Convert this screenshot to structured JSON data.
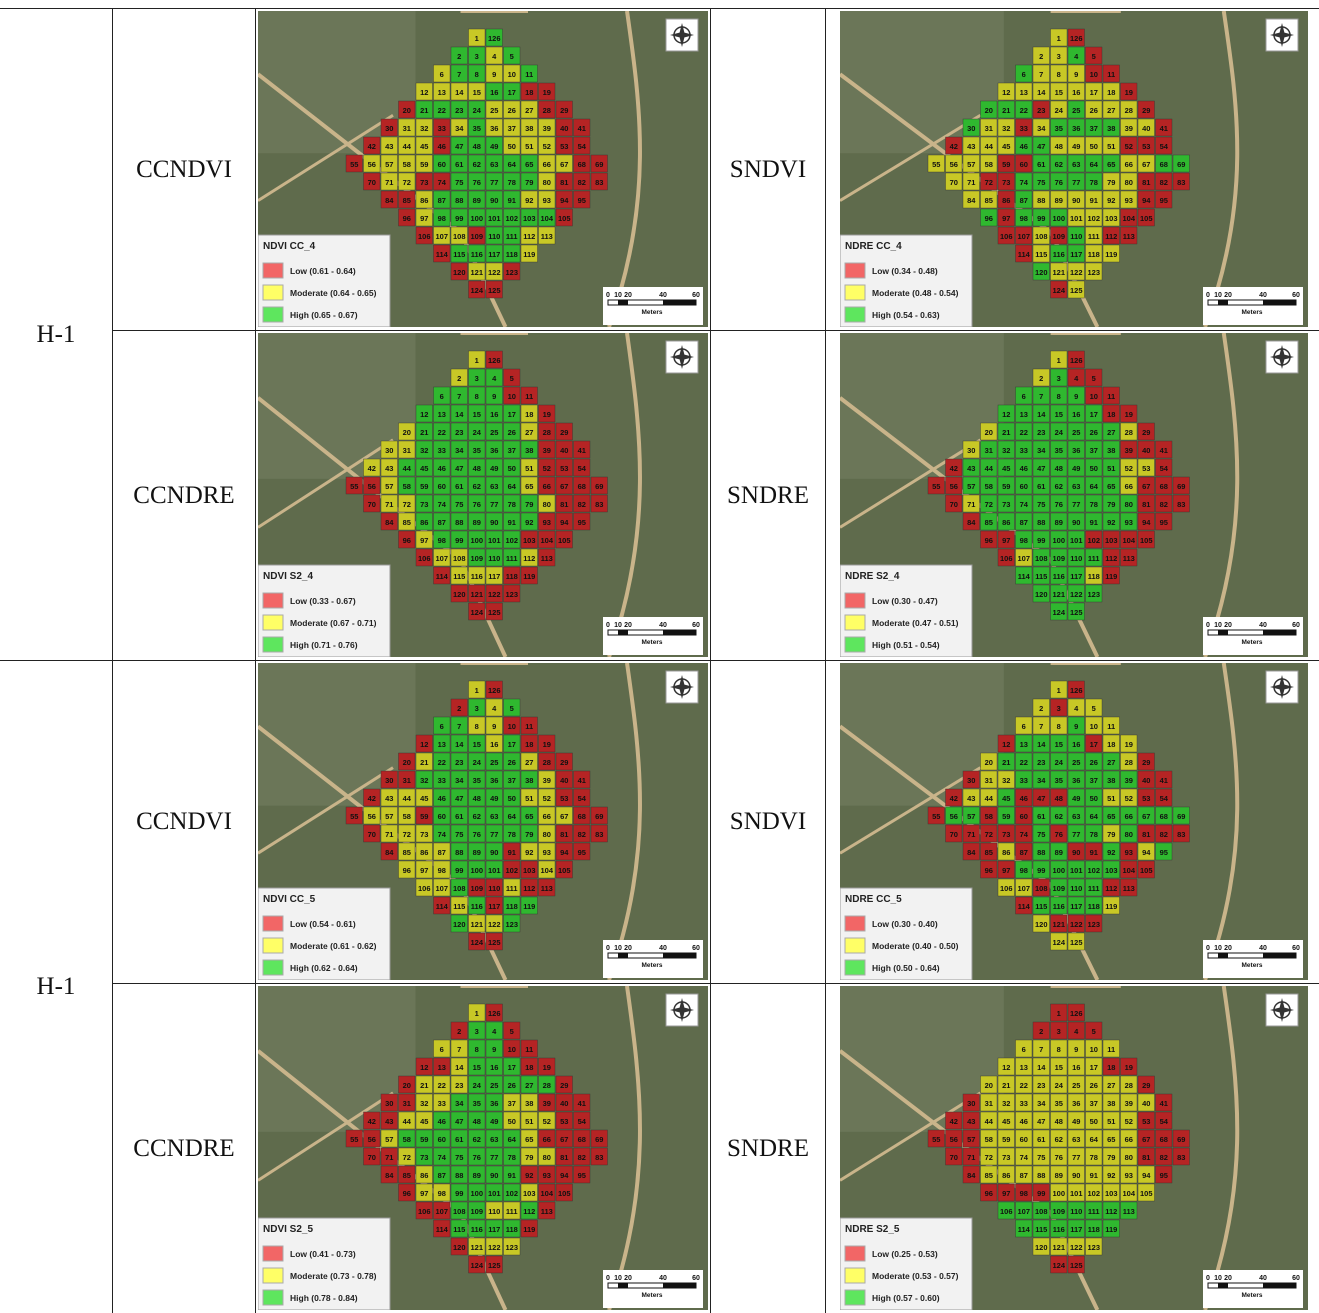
{
  "cell_colors": [
    "#b52424",
    "#c8c826",
    "#2fb82f"
  ],
  "cell_rows": [
    [
      1,
      126
    ],
    [
      2,
      3,
      4,
      5
    ],
    [
      6,
      7,
      8,
      9,
      10,
      11
    ],
    [
      12,
      13,
      14,
      15,
      16,
      17,
      18,
      19
    ],
    [
      20,
      21,
      22,
      23,
      24,
      25,
      26,
      27,
      28,
      29
    ],
    [
      30,
      31,
      32,
      33,
      34,
      35,
      36,
      37,
      38,
      39,
      40,
      41
    ],
    [
      42,
      43,
      44,
      45,
      46,
      47,
      48,
      49,
      50,
      51,
      52,
      53,
      54
    ],
    [
      55,
      56,
      57,
      58,
      59,
      60,
      61,
      62,
      63,
      64,
      65,
      66,
      67,
      68,
      69
    ],
    [
      70,
      71,
      72,
      73,
      74,
      75,
      76,
      77,
      78,
      79,
      80,
      81,
      82,
      83
    ],
    [
      84,
      85,
      86,
      87,
      88,
      89,
      90,
      91,
      92,
      93,
      94,
      95
    ],
    [
      96,
      97,
      98,
      99,
      100,
      101,
      102,
      103,
      104,
      105
    ],
    [
      106,
      107,
      108,
      109,
      110,
      111,
      112,
      113
    ],
    [
      114,
      115,
      116,
      117,
      118,
      119
    ],
    [
      120,
      121,
      122,
      123
    ],
    [
      124,
      125
    ]
  ],
  "scale_labels": [
    "0",
    "10",
    "20",
    "40",
    "60",
    "Meters"
  ],
  "groups": [
    {
      "label": "H-1",
      "rows": [
        {
          "left": {
            "label": "CCNDVI",
            "map": {
              "legend_title": "NDVI CC_4",
              "legend": [
                {
                  "label": "Low (0.61 - 0.64)",
                  "color": "#f26666"
                },
                {
                  "label": "Moderate (0.64 - 0.65)",
                  "color": "#ffff66"
                },
                {
                  "label": "High (0.65 - 0.67)",
                  "color": "#5ee65e"
                }
              ],
              "cells": [
                "12",
                "2212",
                "122112",
                "11112200",
                "0222211100",
                "011012111100",
                "0111022211100",
                "011112222221100",
                "01100222221000",
                "001222221100",
                "0122222220",
                "01102211",
                "022221",
                "0110",
                "00"
              ]
            }
          },
          "right": {
            "label": "SNDVI",
            "map": {
              "legend_title": "NDRE CC_4",
              "legend": [
                {
                  "label": "Low (0.34 - 0.48)",
                  "color": "#f26666"
                },
                {
                  "label": "Moderate (0.48 - 0.54)",
                  "color": "#ffff66"
                },
                {
                  "label": "High (0.54 - 0.63)",
                  "color": "#5ee65e"
                }
              ],
              "cells": [
                "10",
                "1120",
                "211100",
                "11111110",
                "2220121110",
                "211012222110",
                "0111221111000",
                "111100222221122",
                "11002222211000",
                "110211111100",
                "2022211100",
                "00102100",
                "012211",
                "2111",
                "01"
              ]
            }
          }
        },
        {
          "left": {
            "label": "CCNDRE",
            "map": {
              "legend_title": "NDVI S2_4",
              "legend": [
                {
                  "label": "Low (0.33 - 0.67)",
                  "color": "#f26666"
                },
                {
                  "label": "Moderate (0.67 - 0.71)",
                  "color": "#ffff66"
                },
                {
                  "label": "High (0.71 - 0.76)",
                  "color": "#5ee65e"
                }
              ],
              "cells": [
                "10",
                "1220",
                "222200",
                "22222210",
                "1222222100",
                "112222222000",
                "1122222221000",
                "001222222210000",
                "01122222221000",
                "012222222000",
                "0122222000",
                "01122210",
                "011100",
                "0000",
                "00"
              ]
            }
          },
          "right": {
            "label": "SNDRE",
            "map": {
              "legend_title": "NDRE S2_4",
              "legend": [
                {
                  "label": "Low (0.30 - 0.47)",
                  "color": "#f26666"
                },
                {
                  "label": "Moderate (0.47 - 0.51)",
                  "color": "#ffff66"
                },
                {
                  "label": "High (0.51 - 0.54)",
                  "color": "#5ee65e"
                }
              ],
              "cells": [
                "10",
                "1200",
                "222200",
                "22222200",
                "1222222210",
                "122222222000",
                "0222222222110",
                "002222222221000",
                "01222222222000",
                "022222222200",
                "0022220000",
                "01222200",
                "222210",
                "2222",
                "22"
              ]
            }
          }
        }
      ]
    },
    {
      "label": "H-1",
      "rows": [
        {
          "left": {
            "label": "CCNDVI",
            "map": {
              "legend_title": "NDVI CC_5",
              "legend": [
                {
                  "label": "Low (0.54 - 0.61)",
                  "color": "#f26666"
                },
                {
                  "label": "Moderate (0.61 - 0.62)",
                  "color": "#ffff66"
                },
                {
                  "label": "High (0.62 - 0.64)",
                  "color": "#5ee65e"
                }
              ],
              "cells": [
                "10",
                "0212",
                "221100",
                "02221200",
                "0122222100",
                "002222222100",
                "0111222221100",
                "011102222221100",
                "01112222221000",
                "011122201100",
                "1112220010",
                "11200100",
                "012022",
                "2112",
                "00"
              ]
            }
          },
          "right": {
            "label": "SNDVI",
            "map": {
              "legend_title": "NDRE CC_5",
              "legend": [
                {
                  "label": "Low (0.30 - 0.40)",
                  "color": "#f26666"
                },
                {
                  "label": "Moderate (0.40 - 0.50)",
                  "color": "#ffff66"
                },
                {
                  "label": "High (0.50 - 0.64)",
                  "color": "#5ee65e"
                }
              ],
              "cells": [
                "10",
                "1011",
                "111211",
                "02222011",
                "1222222210",
                "011222222200",
                "0112000221100",
                "022020222222222",
                "00000202212000",
                "001022002012",
                "0022222200",
                "11022200",
                "022221",
                "1000",
                "11"
              ]
            }
          }
        },
        {
          "left": {
            "label": "CCNDRE",
            "map": {
              "legend_title": "NDVI S2_5",
              "legend": [
                {
                  "label": "Low (0.41 - 0.73)",
                  "color": "#f26666"
                },
                {
                  "label": "Moderate (0.73 - 0.78)",
                  "color": "#ffff66"
                },
                {
                  "label": "High (0.78 - 0.84)",
                  "color": "#5ee65e"
                }
              ],
              "cells": [
                "10",
                "0220",
                "112200",
                "00122200",
                "0111222220",
                "001122211000",
                "0011222211100",
                "001222222210000",
                "00122222211000",
                "001222220000",
                "0112222100",
                "00221120",
                "022220",
                "0111",
                "00"
              ]
            }
          },
          "right": {
            "label": "SNDRE",
            "map": {
              "legend_title": "NDRE S2_5",
              "legend": [
                {
                  "label": "Low (0.25 - 0.53)",
                  "color": "#f26666"
                },
                {
                  "label": "Moderate (0.53 - 0.57)",
                  "color": "#ffff66"
                },
                {
                  "label": "High (0.57 - 0.60)",
                  "color": "#5ee65e"
                }
              ],
              "cells": [
                "00",
                "0000",
                "111111",
                "11111100",
                "1111111110",
                "011111111110",
                "0011111111100",
                "000111111111000",
                "00111111111000",
                "011111111110",
                "0000111111",
                "22222222",
                "222222",
                "1111",
                "00"
              ]
            }
          }
        }
      ]
    }
  ]
}
